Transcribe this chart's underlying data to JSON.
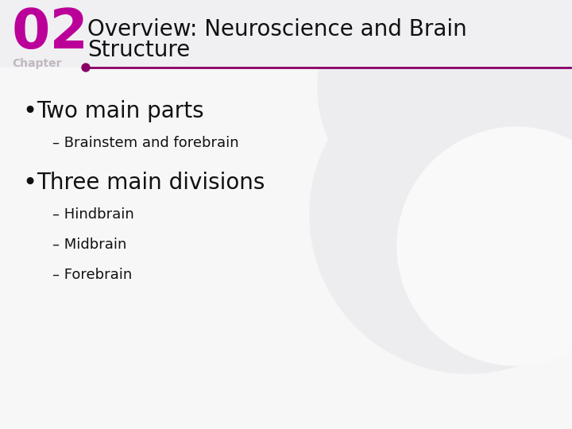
{
  "bg_color": "#f7f7f8",
  "circle_color": "#ededf0",
  "circle_inner_color": "#f9f9fa",
  "chapter_num": "02",
  "chapter_num_color": "#bb0099",
  "chapter_label": "Chapter",
  "chapter_label_color": "#c0b8c0",
  "title_line1": "Overview: Neuroscience and Brain",
  "title_line2": "Structure",
  "title_color": "#111111",
  "title_fontsize": 20,
  "divider_color": "#880066",
  "bullet1": "Two main parts",
  "bullet1_sub": [
    "– Brainstem and forebrain"
  ],
  "bullet2": "Three main divisions",
  "bullet2_sub": [
    "– Hindbrain",
    "– Midbrain",
    "– Forebrain"
  ],
  "bullet_color": "#111111",
  "bullet_fontsize": 20,
  "sub_fontsize": 13,
  "sub_color": "#111111",
  "bullet_dot_color": "#111111",
  "header_bg": "#f0f0f3"
}
